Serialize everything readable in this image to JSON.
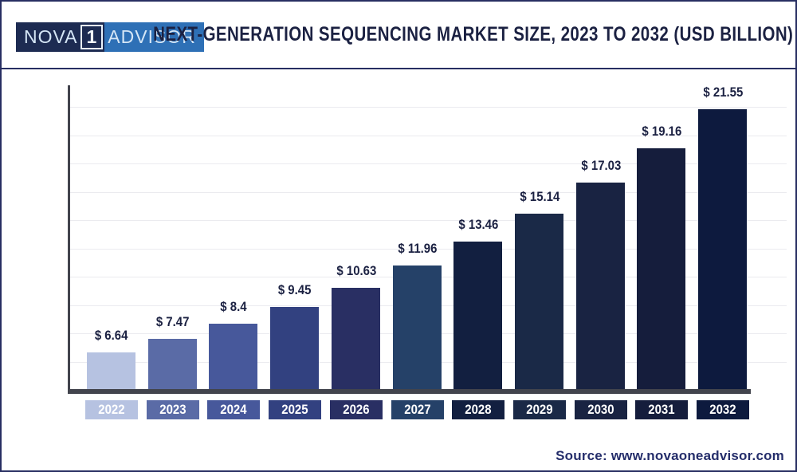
{
  "header": {
    "logo": {
      "part1": "NOVA",
      "one": "1",
      "part2": "ADVISOR"
    },
    "title": "NEXT-GENERATION SEQUENCING MARKET SIZE, 2023 TO 2032 (USD BILLION)"
  },
  "footer": {
    "source": "Source: www.novaoneadvisor.com"
  },
  "chart_data": {
    "type": "bar",
    "title": "Next-Generation Sequencing Market Size, 2023 to 2032 (USD Billion)",
    "unit": "USD Billion",
    "categories": [
      "2022",
      "2023",
      "2024",
      "2025",
      "2026",
      "2027",
      "2028",
      "2029",
      "2030",
      "2031",
      "2032"
    ],
    "values": [
      6.64,
      7.47,
      8.4,
      9.45,
      10.63,
      11.96,
      13.46,
      15.14,
      17.03,
      19.16,
      21.55
    ],
    "value_labels": [
      "$ 6.64",
      "$ 7.47",
      "$ 8.4",
      "$ 9.45",
      "$ 10.63",
      "$ 11.96",
      "$ 13.46",
      "$ 15.14",
      "$ 17.03",
      "$ 19.16",
      "$ 21.55"
    ],
    "bar_colors": [
      "#b6c2e1",
      "#5a6ba6",
      "#47589b",
      "#324180",
      "#292f63",
      "#254168",
      "#121f40",
      "#1a2947",
      "#192342",
      "#151d3c",
      "#0d1a3e"
    ],
    "xlabel": "",
    "ylabel": "",
    "ylim": [
      4.42,
      23
    ],
    "grid": true,
    "legend": "none",
    "axis_color": "#42444d",
    "gridline_color": "#ebebef",
    "label_color": "#1b2142"
  }
}
